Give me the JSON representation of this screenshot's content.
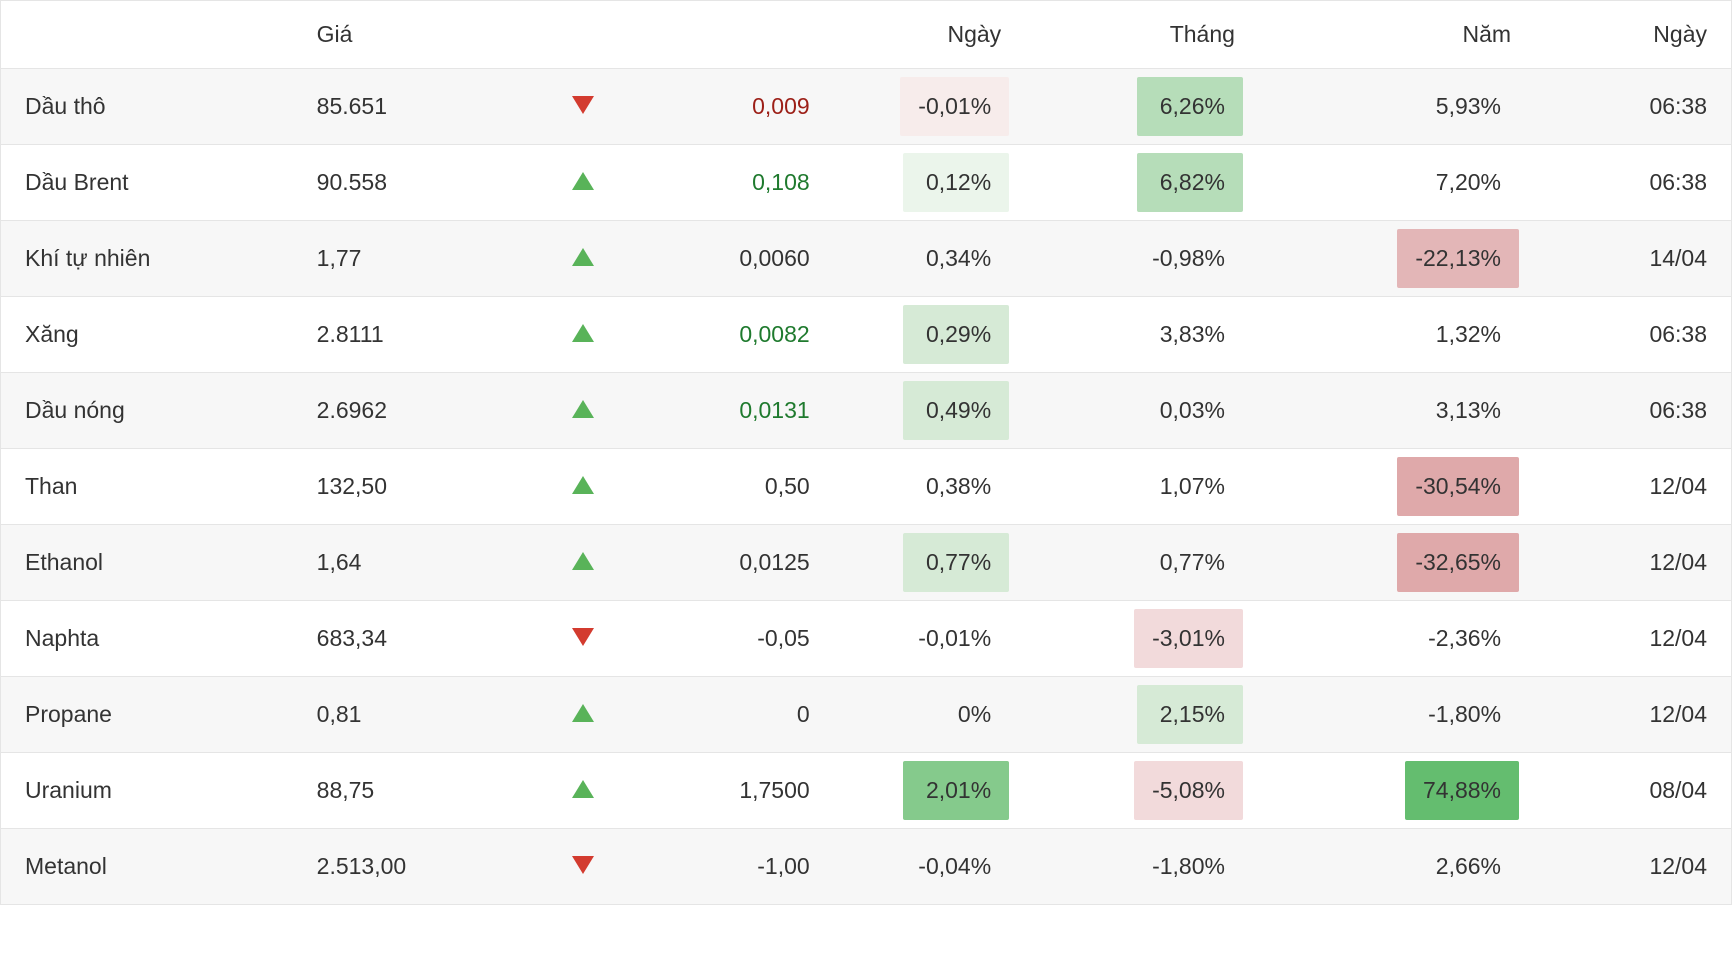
{
  "colors": {
    "border": "#e5e5e5",
    "text": "#333333",
    "row_alt": "#f7f7f7",
    "up_arrow": "#59b359",
    "down_arrow": "#d33b2f",
    "chg_up_text": "#1f7a2e",
    "chg_down_text": "#9c1f17",
    "bg_green1": "#ebf5eb",
    "bg_green2": "#d6ead6",
    "bg_green3": "#b6ddb9",
    "bg_green4": "#85ca8c",
    "bg_green5": "#64bd6f",
    "bg_red1": "#f7eceb",
    "bg_red2": "#f2dadb",
    "bg_red3": "#e3b6b7",
    "bg_red4": "#dfa9aa"
  },
  "headers": {
    "price": "Giá",
    "day": "Ngày",
    "month": "Tháng",
    "year": "Năm",
    "time": "Ngày"
  },
  "rows": [
    {
      "name": "Dầu thô",
      "price": "85.651",
      "dir": "down",
      "chg": "0,009",
      "chg_class": "chg-down",
      "day": "-0,01%",
      "day_bg": "bg-red1",
      "month": "6,26%",
      "month_bg": "bg-green3",
      "year": "5,93%",
      "year_bg": "bg-none",
      "time": "06:38"
    },
    {
      "name": "Dầu Brent",
      "price": "90.558",
      "dir": "up",
      "chg": "0,108",
      "chg_class": "chg-up",
      "day": "0,12%",
      "day_bg": "bg-green1",
      "month": "6,82%",
      "month_bg": "bg-green3",
      "year": "7,20%",
      "year_bg": "bg-none",
      "time": "06:38"
    },
    {
      "name": "Khí tự nhiên",
      "price": "1,77",
      "dir": "up",
      "chg": "0,0060",
      "chg_class": "chg-flat",
      "day": "0,34%",
      "day_bg": "bg-none",
      "month": "-0,98%",
      "month_bg": "bg-none",
      "year": "-22,13%",
      "year_bg": "bg-red3",
      "time": "14/04"
    },
    {
      "name": "Xăng",
      "price": "2.8111",
      "dir": "up",
      "chg": "0,0082",
      "chg_class": "chg-up",
      "day": "0,29%",
      "day_bg": "bg-green2",
      "month": "3,83%",
      "month_bg": "bg-none",
      "year": "1,32%",
      "year_bg": "bg-none",
      "time": "06:38"
    },
    {
      "name": "Dầu nóng",
      "price": "2.6962",
      "dir": "up",
      "chg": "0,0131",
      "chg_class": "chg-up",
      "day": "0,49%",
      "day_bg": "bg-green2",
      "month": "0,03%",
      "month_bg": "bg-none",
      "year": "3,13%",
      "year_bg": "bg-none",
      "time": "06:38"
    },
    {
      "name": "Than",
      "price": "132,50",
      "dir": "up",
      "chg": "0,50",
      "chg_class": "chg-flat",
      "day": "0,38%",
      "day_bg": "bg-none",
      "month": "1,07%",
      "month_bg": "bg-none",
      "year": "-30,54%",
      "year_bg": "bg-red4",
      "time": "12/04"
    },
    {
      "name": "Ethanol",
      "price": "1,64",
      "dir": "up",
      "chg": "0,0125",
      "chg_class": "chg-flat",
      "day": "0,77%",
      "day_bg": "bg-green2",
      "month": "0,77%",
      "month_bg": "bg-none",
      "year": "-32,65%",
      "year_bg": "bg-red4",
      "time": "12/04"
    },
    {
      "name": "Naphta",
      "price": "683,34",
      "dir": "down",
      "chg": "-0,05",
      "chg_class": "chg-flat",
      "day": "-0,01%",
      "day_bg": "bg-none",
      "month": "-3,01%",
      "month_bg": "bg-red2",
      "year": "-2,36%",
      "year_bg": "bg-none",
      "time": "12/04"
    },
    {
      "name": "Propane",
      "price": "0,81",
      "dir": "up",
      "chg": "0",
      "chg_class": "chg-flat",
      "day": "0%",
      "day_bg": "bg-none",
      "month": "2,15%",
      "month_bg": "bg-green2",
      "year": "-1,80%",
      "year_bg": "bg-none",
      "time": "12/04"
    },
    {
      "name": "Uranium",
      "price": "88,75",
      "dir": "up",
      "chg": "1,7500",
      "chg_class": "chg-flat",
      "day": "2,01%",
      "day_bg": "bg-green4",
      "month": "-5,08%",
      "month_bg": "bg-red2",
      "year": "74,88%",
      "year_bg": "bg-green5",
      "time": "08/04"
    },
    {
      "name": "Metanol",
      "price": "2.513,00",
      "dir": "down",
      "chg": "-1,00",
      "chg_class": "chg-flat",
      "day": "-0,04%",
      "day_bg": "bg-none",
      "month": "-1,80%",
      "month_bg": "bg-none",
      "year": "2,66%",
      "year_bg": "bg-none",
      "time": "12/04"
    }
  ]
}
